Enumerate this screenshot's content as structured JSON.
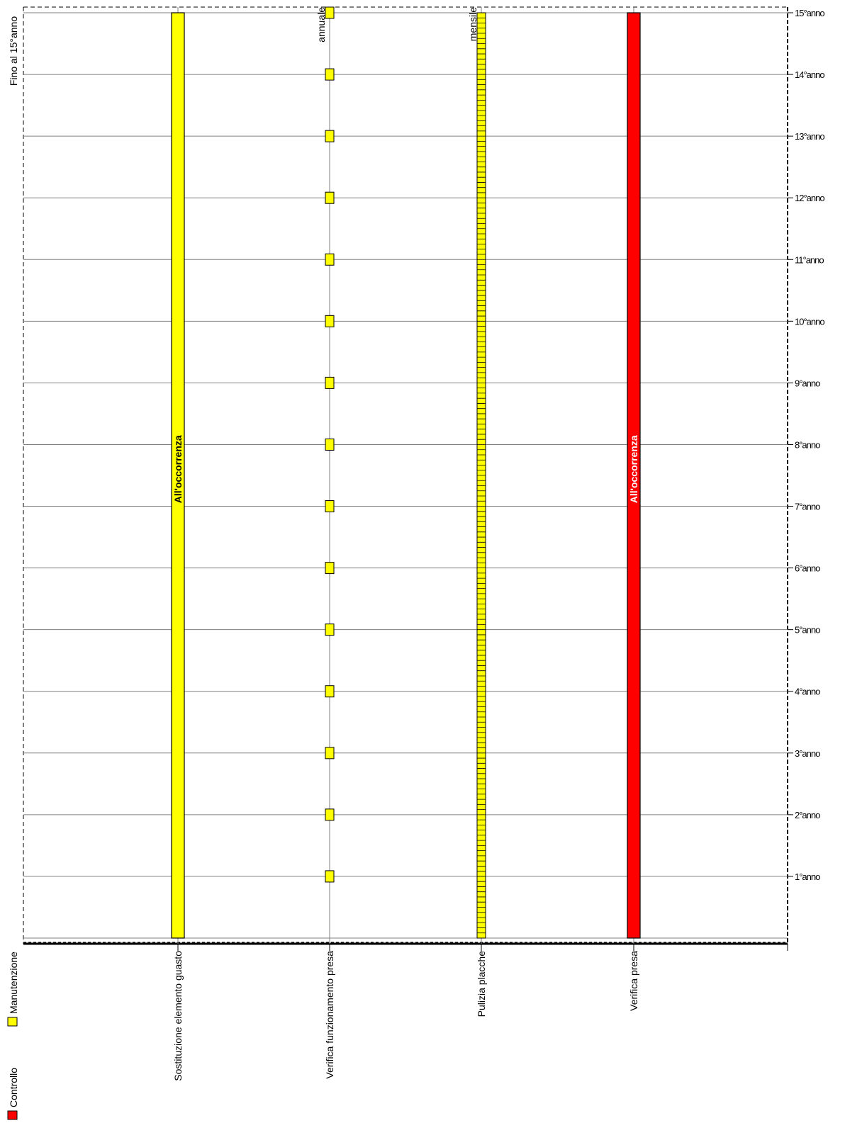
{
  "chart_data": {
    "type": "bar",
    "orientation": "vertical-timeline",
    "period_label": "Fino al 15°anno",
    "y_ticks": [
      "1°anno",
      "2°anno",
      "3°anno",
      "4°anno",
      "5°anno",
      "6°anno",
      "7°anno",
      "8°anno",
      "9°anno",
      "10°anno",
      "11°anno",
      "12°anno",
      "13°anno",
      "14°anno",
      "15°anno"
    ],
    "ylim": [
      0,
      15
    ],
    "categories": [
      "Sostituzione elemento guasto",
      "Verifica funzionamento presa",
      "Pulizia placche",
      "Verifica presa"
    ],
    "series": [
      {
        "name": "Manutenzione",
        "category": "Sostituzione elemento guasto",
        "frequency": "",
        "bar_label": "All'occorrenza",
        "range": [
          0,
          15
        ]
      },
      {
        "name": "Manutenzione",
        "category": "Verifica funzionamento presa",
        "frequency": "annuale",
        "bar_label": "",
        "events_per_year": 1,
        "range": [
          1,
          15
        ]
      },
      {
        "name": "Manutenzione",
        "category": "Pulizia placche",
        "frequency": "mensile",
        "bar_label": "",
        "events_per_year": 12,
        "range": [
          0,
          15
        ]
      },
      {
        "name": "Controllo",
        "category": "Verifica presa",
        "frequency": "",
        "bar_label": "All'occorrenza",
        "range": [
          0,
          15
        ]
      }
    ],
    "legend": {
      "position": "bottom-left",
      "items": [
        {
          "label": "Controllo",
          "color": "#ff0000"
        },
        {
          "label": "Manutenzione",
          "color": "#ffff00"
        }
      ]
    },
    "colors": {
      "controllo": "#ff0000",
      "manutenzione": "#ffff00",
      "grid": "#808080"
    },
    "grid": true
  }
}
